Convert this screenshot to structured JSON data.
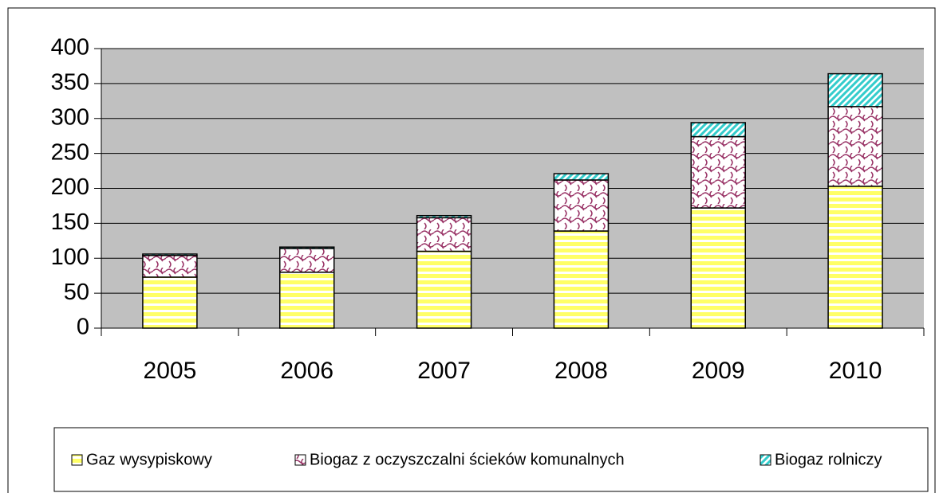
{
  "chart_data": {
    "type": "bar",
    "stacked": true,
    "categories": [
      "2005",
      "2006",
      "2007",
      "2008",
      "2009",
      "2010"
    ],
    "series": [
      {
        "name": "Gaz wysypiskowy",
        "color": "#ffff66",
        "values": [
          73,
          80,
          110,
          139,
          172,
          203
        ]
      },
      {
        "name": "Biogaz z oczyszczalni ścieków komunalnych",
        "color": "#993366",
        "values": [
          31,
          34,
          48,
          73,
          102,
          114
        ]
      },
      {
        "name": "Biogaz rolniczy",
        "color": "#33cccc",
        "values": [
          2,
          2,
          3,
          9,
          20,
          47
        ]
      }
    ],
    "ylim": [
      0,
      400
    ],
    "yticks": [
      0,
      50,
      100,
      150,
      200,
      250,
      300,
      350,
      400
    ],
    "grid": true,
    "legend": "bottom"
  }
}
